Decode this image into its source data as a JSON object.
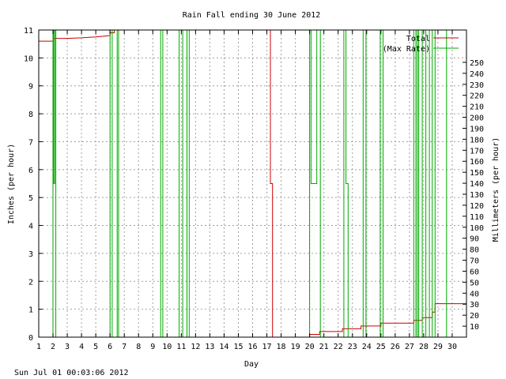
{
  "chart_data": {
    "type": "line",
    "title": "Rain Fall ending 30 June 2012",
    "xlabel": "Day",
    "ylabel": "Inches (per hour)",
    "y2label": "Millimeters (per hour)",
    "footer": "Sun Jul 01 00:03:06 2012",
    "xlim": [
      1,
      31
    ],
    "ylim": [
      0,
      11
    ],
    "y2lim": [
      0,
      279.4
    ],
    "x_ticks": [
      1,
      2,
      3,
      4,
      5,
      6,
      7,
      8,
      9,
      10,
      11,
      12,
      13,
      14,
      15,
      16,
      17,
      18,
      19,
      20,
      21,
      22,
      23,
      24,
      25,
      26,
      27,
      28,
      29,
      30
    ],
    "y_ticks": [
      0,
      1,
      2,
      3,
      4,
      5,
      6,
      7,
      8,
      9,
      10,
      11
    ],
    "y2_ticks": [
      10,
      20,
      30,
      40,
      50,
      60,
      70,
      80,
      90,
      100,
      110,
      120,
      130,
      140,
      150,
      160,
      170,
      180,
      190,
      200,
      210,
      220,
      230,
      240,
      250
    ],
    "grid": true,
    "legend_position": "top-right",
    "series": [
      {
        "name": "Total",
        "color": "#cc0000",
        "x": [
          1,
          2.0,
          2.0,
          3.0,
          4.0,
          5.0,
          5.6,
          6.0,
          6.0,
          6.3,
          6.3,
          17.25,
          17.25,
          17.4,
          17.4,
          20.0,
          20.0,
          20.7,
          20.7,
          22.3,
          22.3,
          23.6,
          23.6,
          25.0,
          25.0,
          27.3,
          27.3,
          27.9,
          27.9,
          28.6,
          28.6,
          28.8,
          28.8,
          31
        ],
        "y": [
          10.6,
          10.6,
          10.7,
          10.7,
          10.72,
          10.75,
          10.78,
          10.8,
          10.9,
          10.9,
          11.0,
          11.0,
          5.5,
          5.5,
          0.0,
          0.0,
          0.1,
          0.1,
          0.2,
          0.2,
          0.3,
          0.3,
          0.4,
          0.4,
          0.5,
          0.5,
          0.6,
          0.6,
          0.7,
          0.7,
          0.9,
          0.9,
          1.2,
          1.2
        ]
      },
      {
        "name": "(Max Rate)",
        "color": "#00aa00",
        "x": [
          1,
          2.0,
          2.0,
          2.05,
          2.05,
          2.12,
          2.12,
          2.2,
          2.2,
          6.0,
          6.0,
          6.15,
          6.15,
          6.5,
          6.5,
          6.6,
          6.6,
          9.55,
          9.55,
          9.7,
          9.7,
          10.85,
          10.85,
          11.1,
          11.1,
          11.4,
          11.4,
          11.55,
          11.55,
          20.0,
          20.0,
          20.1,
          20.1,
          20.5,
          20.5,
          20.75,
          20.75,
          22.4,
          22.4,
          22.55,
          22.55,
          22.7,
          22.7,
          23.75,
          23.75,
          23.95,
          23.95,
          24.95,
          24.95,
          25.15,
          25.15,
          27.3,
          27.3,
          27.45,
          27.45,
          27.55,
          27.55,
          27.65,
          27.65,
          27.9,
          27.9,
          28.15,
          28.15,
          28.4,
          28.4,
          28.6,
          28.6,
          28.8,
          28.8,
          29.6,
          29.6,
          31
        ],
        "y": [
          0,
          0,
          11,
          11,
          5.5,
          5.5,
          11,
          11,
          0,
          0,
          11,
          11,
          0,
          0,
          11,
          11,
          0,
          0,
          11,
          11,
          0,
          0,
          11,
          11,
          0,
          0,
          11,
          11,
          0,
          0,
          11,
          11,
          5.5,
          5.5,
          11,
          11,
          0,
          0,
          11,
          11,
          5.5,
          5.5,
          0,
          0,
          11,
          11,
          0,
          0,
          11,
          11,
          0,
          0,
          11,
          11,
          0,
          0,
          11,
          11,
          0,
          0,
          11,
          11,
          0,
          0,
          11,
          11,
          0,
          0,
          11,
          11,
          0,
          0
        ]
      }
    ]
  }
}
